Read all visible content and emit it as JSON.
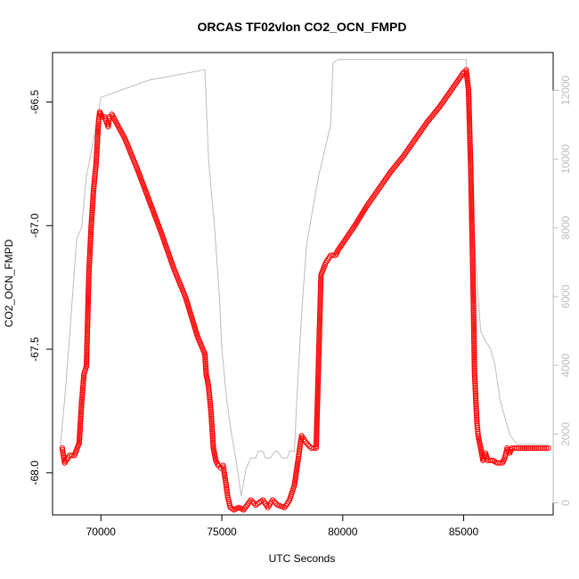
{
  "chart_data": {
    "type": "scatter",
    "title": "ORCAS TF02vlon CO2_OCN_FMPD",
    "xlabel": "UTC Seconds",
    "ylabel": "CO2_OCN_FMPD",
    "xlim": [
      68000,
      88700
    ],
    "ylim": [
      -68.17,
      -66.3
    ],
    "y2lim": [
      -350,
      13100
    ],
    "x_ticks": [
      70000,
      75000,
      80000,
      85000
    ],
    "x_tick_labels": [
      "70000",
      "75000",
      "80000",
      "85000"
    ],
    "y_ticks": [
      -68.0,
      -67.5,
      -67.0,
      -66.5
    ],
    "y_tick_labels": [
      "-68.0",
      "-67.5",
      "-67.0",
      "-66.5"
    ],
    "y2_ticks": [
      0,
      2000,
      4000,
      6000,
      8000,
      10000,
      12000
    ],
    "y2_tick_labels": [
      "0",
      "2000",
      "4000",
      "6000",
      "8000",
      "10000",
      "12000"
    ],
    "grid": false,
    "series": [
      {
        "axis": "left",
        "color": "#ff0000",
        "style": "open-circles",
        "x": [
          68400,
          68500,
          68700,
          68900,
          69100,
          69200,
          69300,
          69400,
          69500,
          69600,
          69700,
          69800,
          69900,
          69950,
          70050,
          70150,
          70300,
          70350,
          70450,
          71000,
          71500,
          72000,
          72500,
          73000,
          73500,
          74000,
          74300,
          74350,
          74450,
          74550,
          74650,
          74750,
          74850,
          74950,
          75050,
          75150,
          75250,
          75350,
          75500,
          75700,
          75900,
          76200,
          76400,
          76700,
          76900,
          77100,
          77300,
          77600,
          77800,
          78000,
          78150,
          78250,
          78300,
          78500,
          78700,
          78900,
          79100,
          79300,
          79500,
          79700,
          79800,
          80500,
          81000,
          81500,
          82000,
          82500,
          83000,
          83500,
          84000,
          84500,
          85000,
          85100,
          85200,
          85300,
          85400,
          85450,
          85500,
          85550,
          85600,
          85700,
          85800,
          85900,
          86000,
          86200,
          86400,
          86600,
          86700,
          86800,
          86900,
          87000,
          87200,
          87600,
          88000,
          88500
        ],
        "y": [
          -67.9,
          -67.96,
          -67.93,
          -67.93,
          -67.88,
          -67.72,
          -67.6,
          -67.57,
          -67.2,
          -67.0,
          -66.85,
          -66.75,
          -66.58,
          -66.54,
          -66.56,
          -66.56,
          -66.6,
          -66.56,
          -66.55,
          -66.65,
          -66.77,
          -66.9,
          -67.03,
          -67.17,
          -67.29,
          -67.45,
          -67.52,
          -67.6,
          -67.65,
          -67.75,
          -67.9,
          -67.95,
          -67.97,
          -67.98,
          -67.97,
          -68.03,
          -68.1,
          -68.14,
          -68.15,
          -68.14,
          -68.15,
          -68.11,
          -68.13,
          -68.11,
          -68.14,
          -68.11,
          -68.13,
          -68.14,
          -68.11,
          -68.05,
          -67.95,
          -67.88,
          -67.85,
          -67.88,
          -67.9,
          -67.9,
          -67.2,
          -67.15,
          -67.12,
          -67.12,
          -67.1,
          -67.0,
          -66.92,
          -66.85,
          -66.78,
          -66.72,
          -66.65,
          -66.58,
          -66.52,
          -66.45,
          -66.38,
          -66.37,
          -66.45,
          -66.8,
          -67.3,
          -67.6,
          -67.7,
          -67.8,
          -67.85,
          -67.9,
          -67.95,
          -67.92,
          -67.95,
          -67.95,
          -67.96,
          -67.96,
          -67.94,
          -67.9,
          -67.92,
          -67.9,
          -67.9,
          -67.9,
          -67.9,
          -67.9
        ]
      },
      {
        "axis": "right",
        "color": "#bdbdbd",
        "style": "line",
        "x": [
          68300,
          68500,
          68700,
          69000,
          69200,
          69400,
          69600,
          69800,
          70000,
          72000,
          74300,
          74450,
          74700,
          74800,
          74900,
          75000,
          75200,
          75400,
          75600,
          75800,
          76000,
          76200,
          76400,
          76500,
          76700,
          76800,
          77000,
          77200,
          77300,
          77500,
          77700,
          77800,
          78000,
          78100,
          78300,
          78500,
          79000,
          79500,
          79600,
          79800,
          80000,
          85100,
          85300,
          85500,
          85700,
          85900,
          86100,
          86300,
          86500,
          86700,
          86900,
          87200,
          87600,
          88000,
          88500
        ],
        "y": [
          1500,
          3000,
          4800,
          7700,
          8000,
          9500,
          10200,
          11000,
          11800,
          12300,
          12600,
          10000,
          8000,
          7000,
          6000,
          4500,
          3000,
          2000,
          1200,
          200,
          1000,
          1300,
          1300,
          1500,
          1500,
          1300,
          1300,
          1500,
          1500,
          1300,
          1300,
          1500,
          1500,
          3000,
          5500,
          7500,
          9500,
          11000,
          12800,
          12900,
          12900,
          12900,
          10000,
          7000,
          5000,
          4700,
          4500,
          4000,
          3000,
          2500,
          2000,
          1700,
          1700,
          1700,
          1700
        ]
      }
    ]
  }
}
